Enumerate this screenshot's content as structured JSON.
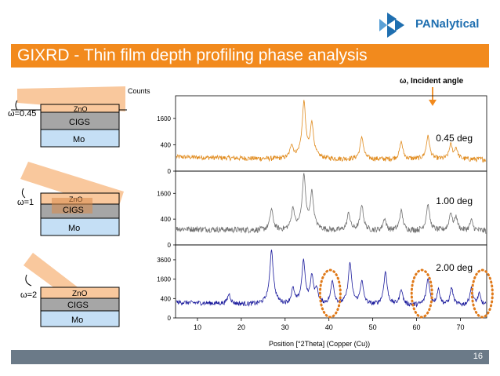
{
  "header": {
    "logo_name": "PANalytical",
    "title": "GIXRD - Thin film depth profiling phase analysis"
  },
  "footer": {
    "page_number": "16"
  },
  "stacks": [
    {
      "omega_label": "ω=0.45",
      "layers": [
        "ZnO",
        "CIGS",
        "Mo"
      ]
    },
    {
      "omega_label": "ω=1",
      "layers": [
        "ZnO",
        "CIGS",
        "Mo"
      ]
    },
    {
      "omega_label": "ω=2",
      "layers": [
        "ZnO",
        "CIGS",
        "Mo"
      ]
    }
  ],
  "colors": {
    "accent": "#f28a1d",
    "beam": "#f9c89d",
    "zno": "#f9c89d",
    "cigs": "#a6a6a6",
    "mo": "#c5dff5",
    "series_045": "#e08a1c",
    "series_100": "#707070",
    "series_200": "#1a1a9c",
    "highlight": "#e07a1a",
    "footer": "#6b7a88"
  },
  "chart_data": {
    "type": "line",
    "title": "",
    "ylabel": "Counts",
    "xlabel": "Position [°2Theta] (Copper (Cu))",
    "xlim": [
      5,
      76
    ],
    "x_ticks": [
      10,
      20,
      30,
      40,
      50,
      60,
      70
    ],
    "annotation": "ω, Incident angle",
    "annotation_x": 62,
    "panels": [
      {
        "name": "0.45 deg",
        "color": "#e08a1c",
        "y_ticks": [
          "1600",
          "400",
          "0"
        ],
        "y_tick_values": [
          1600,
          400,
          0
        ],
        "ylim": [
          0,
          3000
        ],
        "peaks": [
          [
            31.5,
            320
          ],
          [
            34.3,
            2750
          ],
          [
            36.1,
            1300
          ],
          [
            47.5,
            600
          ],
          [
            56.5,
            420
          ],
          [
            62.6,
            640
          ],
          [
            67.8,
            340
          ],
          [
            69.0,
            230
          ]
        ]
      },
      {
        "name": "1.00 deg",
        "color": "#707070",
        "y_ticks": [
          "1600",
          "400",
          "0"
        ],
        "y_tick_values": [
          1600,
          400,
          0
        ],
        "ylim": [
          0,
          3000
        ],
        "peaks": [
          [
            26.9,
            650
          ],
          [
            31.8,
            700
          ],
          [
            34.3,
            2900
          ],
          [
            36.1,
            1600
          ],
          [
            44.5,
            500
          ],
          [
            47.5,
            850
          ],
          [
            52.7,
            300
          ],
          [
            56.5,
            600
          ],
          [
            62.6,
            880
          ],
          [
            67.8,
            500
          ],
          [
            69.0,
            350
          ],
          [
            72.5,
            250
          ]
        ]
      },
      {
        "name": "2.00 deg",
        "color": "#1a1a9c",
        "y_ticks": [
          "3600",
          "1600",
          "400",
          "0"
        ],
        "y_tick_values": [
          3600,
          1600,
          400,
          0
        ],
        "ylim": [
          0,
          5200
        ],
        "peaks": [
          [
            17.2,
            400
          ],
          [
            26.9,
            4800
          ],
          [
            31.8,
            750
          ],
          [
            34.2,
            3400
          ],
          [
            36.1,
            1800
          ],
          [
            37.2,
            700
          ],
          [
            40.8,
            1300
          ],
          [
            44.8,
            3100
          ],
          [
            47.5,
            1300
          ],
          [
            52.9,
            2100
          ],
          [
            56.5,
            700
          ],
          [
            62.6,
            1500
          ],
          [
            65.0,
            700
          ],
          [
            68.0,
            800
          ],
          [
            72.5,
            800
          ],
          [
            74.3,
            450
          ]
        ]
      }
    ],
    "highlight_x": [
      40.3,
      61.2,
      75.0
    ]
  }
}
